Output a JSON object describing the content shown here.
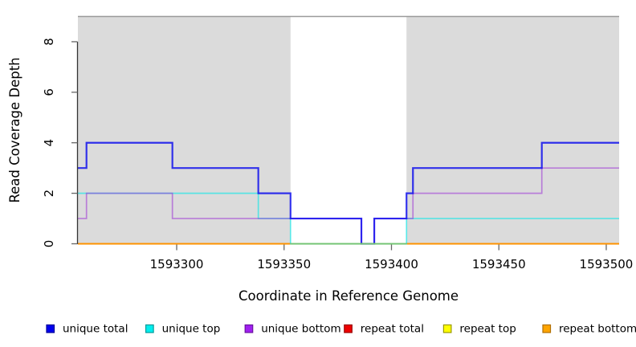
{
  "figure": {
    "shaded_region_color": "#DBDBDB",
    "shaded_border_color": "#9A9A9A",
    "axis_color": "#333333",
    "tick_color": "#666666",
    "text_color": "#000000",
    "background": "#FFFFFF"
  },
  "chart_data": {
    "type": "line",
    "subtype": "step-coverage",
    "title": "",
    "xlabel": "Coordinate in Reference Genome",
    "ylabel": "Read Coverage Depth",
    "xlim": [
      1593254,
      1593506
    ],
    "ylim": [
      0,
      9
    ],
    "x_ticks": [
      1593300,
      1593350,
      1593400,
      1593450,
      1593500
    ],
    "y_ticks": [
      0,
      2,
      4,
      6,
      8
    ],
    "grid": false,
    "shaded_regions": [
      [
        1593254,
        1593353
      ],
      [
        1593407,
        1593506
      ]
    ],
    "unshaded_gap": [
      1593353,
      1593407
    ],
    "series": [
      {
        "name": "repeat total",
        "color": "#EE0000",
        "opacity": 1,
        "width": 1.6,
        "steps": [
          [
            1593254,
            0
          ],
          [
            1593506,
            0
          ]
        ]
      },
      {
        "name": "repeat top",
        "color": "#FFFF00",
        "opacity": 1,
        "width": 1.6,
        "steps": [
          [
            1593254,
            0
          ],
          [
            1593506,
            0
          ]
        ]
      },
      {
        "name": "repeat bottom",
        "color": "#FF9300",
        "opacity": 1,
        "width": 2,
        "steps": [
          [
            1593254,
            0
          ],
          [
            1593506,
            0
          ]
        ]
      },
      {
        "name": "unique top",
        "color": "#00E8E8",
        "opacity": 0.6,
        "width": 1.7,
        "steps": [
          [
            1593254,
            2
          ],
          [
            1593338,
            1
          ],
          [
            1593353,
            0
          ],
          [
            1593407,
            1
          ],
          [
            1593506,
            1
          ]
        ]
      },
      {
        "name": "unique bottom",
        "color": "#9B30D5",
        "opacity": 0.55,
        "width": 1.7,
        "steps": [
          [
            1593254,
            1
          ],
          [
            1593258,
            2
          ],
          [
            1593298,
            1
          ],
          [
            1593386,
            0
          ],
          [
            1593392,
            1
          ],
          [
            1593410,
            2
          ],
          [
            1593470,
            3
          ],
          [
            1593506,
            3
          ]
        ]
      },
      {
        "name": "unique total",
        "color": "#0000EE",
        "opacity": 0.78,
        "width": 2.2,
        "steps": [
          [
            1593254,
            3
          ],
          [
            1593258,
            4
          ],
          [
            1593298,
            3
          ],
          [
            1593338,
            2
          ],
          [
            1593353,
            1
          ],
          [
            1593386,
            0
          ],
          [
            1593392,
            1
          ],
          [
            1593407,
            2
          ],
          [
            1593410,
            3
          ],
          [
            1593470,
            4
          ],
          [
            1593506,
            4
          ]
        ]
      }
    ],
    "gap_zero_overlay": {
      "color": "#74C474",
      "x": [
        1593353,
        1593407
      ],
      "y": 0,
      "width": 2
    },
    "legend_position": "bottom"
  },
  "legend": {
    "items": [
      {
        "label": "unique total",
        "fill": "#0000EE",
        "border": "#00009A"
      },
      {
        "label": "unique top",
        "fill": "#00EEEE",
        "border": "#009A9A"
      },
      {
        "label": "unique bottom",
        "fill": "#A020F0",
        "border": "#6A14A0"
      },
      {
        "label": "repeat total",
        "fill": "#EE0000",
        "border": "#9A0000"
      },
      {
        "label": "repeat top",
        "fill": "#FFFF00",
        "border": "#9A9A00"
      },
      {
        "label": "repeat bottom",
        "fill": "#FFA500",
        "border": "#B06F00"
      }
    ]
  }
}
